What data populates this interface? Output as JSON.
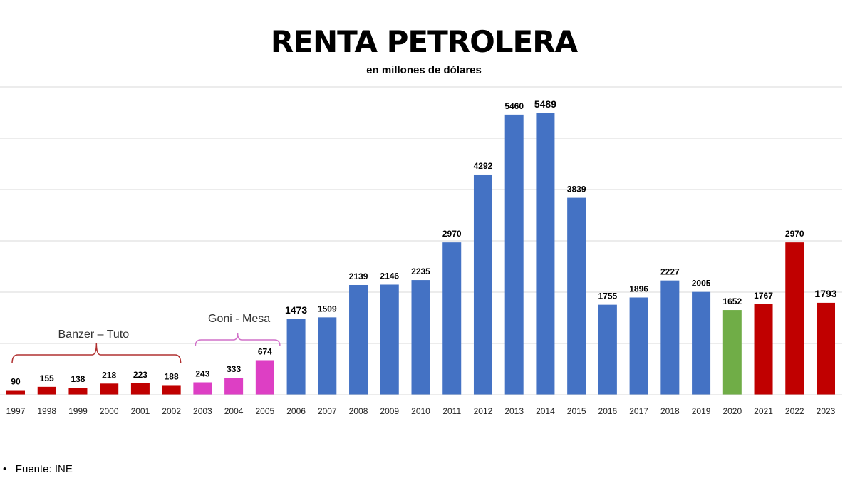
{
  "chart_data": {
    "type": "bar",
    "title": "RENTA PETROLERA",
    "subtitle": "en millones de dólares",
    "categories": [
      "1997",
      "1998",
      "1999",
      "2000",
      "2001",
      "2002",
      "2003",
      "2004",
      "2005",
      "2006",
      "2007",
      "2008",
      "2009",
      "2010",
      "2011",
      "2012",
      "2013",
      "2014",
      "2015",
      "2016",
      "2017",
      "2018",
      "2019",
      "2020",
      "2021",
      "2022",
      "2023"
    ],
    "values": [
      90,
      155,
      138,
      218,
      223,
      188,
      243,
      333,
      674,
      1473,
      1509,
      2139,
      2146,
      2235,
      2970,
      4292,
      5460,
      5489,
      3839,
      1755,
      1896,
      2227,
      2005,
      1652,
      1767,
      2970,
      1793
    ],
    "bar_colors": [
      "#C00000",
      "#C00000",
      "#C00000",
      "#C00000",
      "#C00000",
      "#C00000",
      "#DD3FC4",
      "#DD3FC4",
      "#DD3FC4",
      "#4472C4",
      "#4472C4",
      "#4472C4",
      "#4472C4",
      "#4472C4",
      "#4472C4",
      "#4472C4",
      "#4472C4",
      "#4472C4",
      "#4472C4",
      "#4472C4",
      "#4472C4",
      "#4472C4",
      "#4472C4",
      "#70AD47",
      "#C00000",
      "#C00000",
      "#C00000"
    ],
    "ylim": [
      0,
      6000
    ],
    "grid": true,
    "annotations": [
      {
        "text": "Banzer – Tuto",
        "from": "1997",
        "to": "2002",
        "color": "#B03030"
      },
      {
        "text": "Goni - Mesa",
        "from": "2003",
        "to": "2005",
        "color": "#D070C8"
      }
    ]
  },
  "source": "Fuente: INE",
  "bullet": "•"
}
